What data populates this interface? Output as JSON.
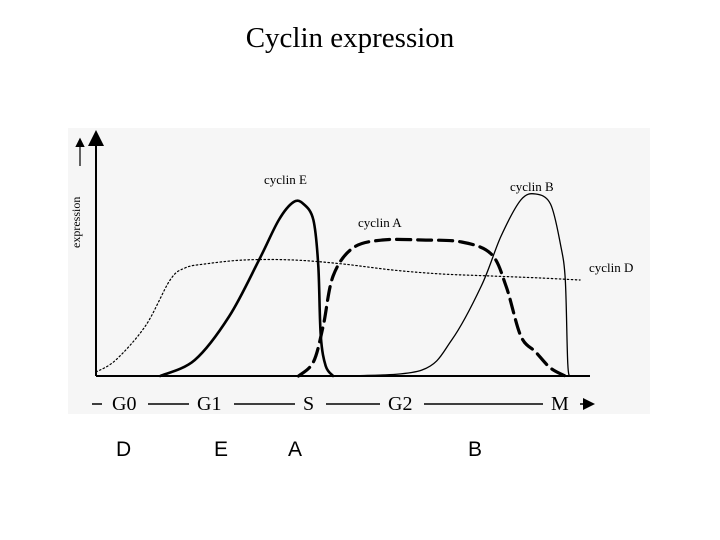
{
  "slide": {
    "title": "Cyclin expression"
  },
  "chart_data": {
    "type": "line",
    "ylabel": "expression",
    "x_phases": [
      "G0",
      "G1",
      "S",
      "G2",
      "M"
    ],
    "series": [
      {
        "name": "cyclin D",
        "style": "dotted",
        "color": "#000000",
        "points": [
          [
            0,
            0.02
          ],
          [
            0.04,
            0.08
          ],
          [
            0.1,
            0.25
          ],
          [
            0.15,
            0.48
          ],
          [
            0.18,
            0.54
          ],
          [
            0.22,
            0.56
          ],
          [
            0.3,
            0.58
          ],
          [
            0.4,
            0.58
          ],
          [
            0.5,
            0.56
          ],
          [
            0.6,
            0.53
          ],
          [
            0.7,
            0.51
          ],
          [
            0.8,
            0.5
          ],
          [
            0.9,
            0.49
          ],
          [
            0.98,
            0.48
          ]
        ]
      },
      {
        "name": "cyclin E",
        "style": "solid",
        "color": "#000000",
        "points": [
          [
            0.13,
            0
          ],
          [
            0.2,
            0.08
          ],
          [
            0.27,
            0.3
          ],
          [
            0.33,
            0.58
          ],
          [
            0.37,
            0.78
          ],
          [
            0.4,
            0.87
          ],
          [
            0.42,
            0.86
          ],
          [
            0.44,
            0.78
          ],
          [
            0.45,
            0.55
          ],
          [
            0.455,
            0.2
          ],
          [
            0.465,
            0.05
          ],
          [
            0.48,
            0
          ]
        ]
      },
      {
        "name": "cyclin A",
        "style": "dashed",
        "color": "#000000",
        "points": [
          [
            0.41,
            0
          ],
          [
            0.44,
            0.07
          ],
          [
            0.46,
            0.25
          ],
          [
            0.48,
            0.5
          ],
          [
            0.52,
            0.64
          ],
          [
            0.58,
            0.68
          ],
          [
            0.66,
            0.68
          ],
          [
            0.74,
            0.67
          ],
          [
            0.8,
            0.61
          ],
          [
            0.83,
            0.45
          ],
          [
            0.86,
            0.2
          ],
          [
            0.89,
            0.12
          ],
          [
            0.92,
            0.04
          ],
          [
            0.95,
            0
          ]
        ]
      },
      {
        "name": "cyclin B",
        "style": "solid-thin",
        "color": "#000000",
        "points": [
          [
            0.52,
            0
          ],
          [
            0.66,
            0.03
          ],
          [
            0.72,
            0.18
          ],
          [
            0.78,
            0.45
          ],
          [
            0.82,
            0.7
          ],
          [
            0.86,
            0.88
          ],
          [
            0.89,
            0.91
          ],
          [
            0.92,
            0.86
          ],
          [
            0.94,
            0.66
          ],
          [
            0.95,
            0.48
          ],
          [
            0.955,
            0.06
          ],
          [
            0.96,
            0
          ]
        ]
      }
    ]
  },
  "answer_letters": [
    "D",
    "E",
    "A",
    "B"
  ]
}
